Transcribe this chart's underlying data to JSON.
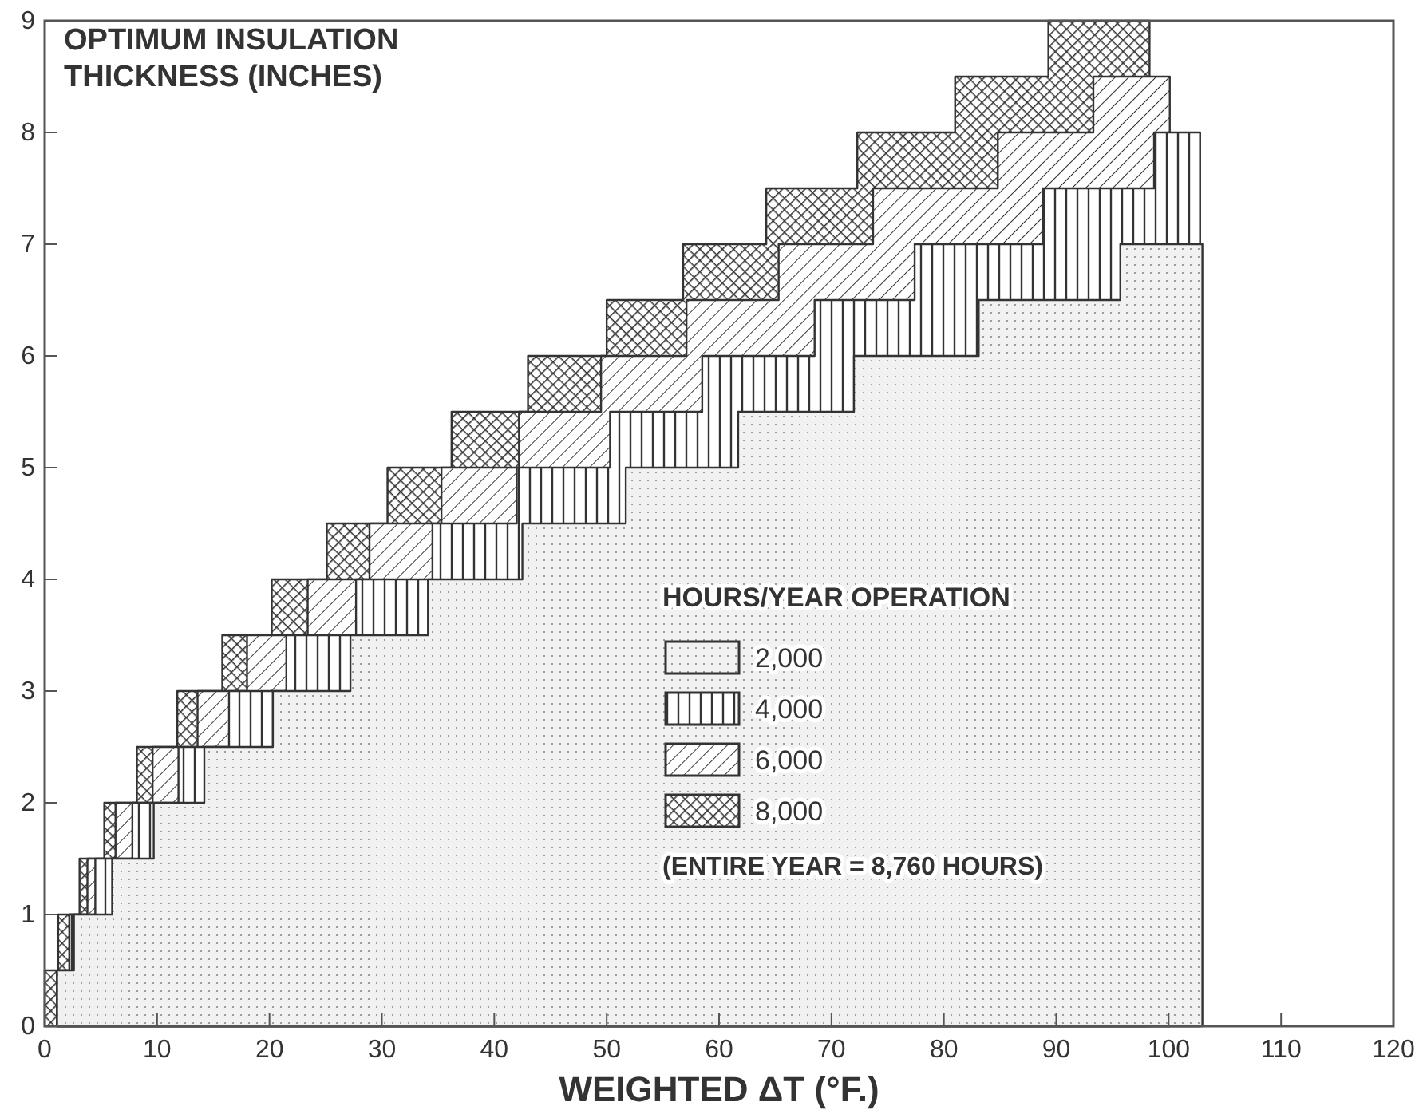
{
  "chart_data": {
    "type": "area",
    "ylabel": "OPTIMUM INSULATION\nTHICKNESS (INCHES)",
    "xlabel": "WEIGHTED ΔT (°F.)",
    "legend_title": "HOURS/YEAR OPERATION",
    "legend": "right",
    "annotations": [
      "(ENTIRE YEAR = 8,760 HOURS)"
    ],
    "xlim": [
      0,
      120
    ],
    "xticks": [
      0,
      10,
      20,
      30,
      40,
      50,
      60,
      70,
      80,
      90,
      100,
      110,
      120
    ],
    "ylim": [
      0,
      9
    ],
    "yticks": [
      0,
      1,
      2,
      3,
      4,
      5,
      6,
      7,
      8,
      9
    ],
    "grid": false,
    "series": [
      {
        "name": "2,000",
        "color": "#333333",
        "x": [
          1.1,
          2.6,
          2.6,
          6.0,
          6.0,
          9.7,
          9.7,
          14.2,
          14.2,
          20.3,
          20.3,
          27.2,
          27.2,
          34.1,
          34.1,
          42.5,
          42.5,
          51.7,
          51.7,
          61.7,
          61.7,
          72.0,
          72.0,
          83.1,
          83.1,
          95.7,
          95.7,
          103
        ],
        "values": [
          0.5,
          0.5,
          1.0,
          1.0,
          1.5,
          1.5,
          2.0,
          2.0,
          2.5,
          2.5,
          3.0,
          3.0,
          3.5,
          3.5,
          4.0,
          4.0,
          4.5,
          4.5,
          5.0,
          5.0,
          5.5,
          5.5,
          6.0,
          6.0,
          6.5,
          6.5,
          7.0,
          7.0
        ]
      },
      {
        "name": "4,000",
        "color": "#333333",
        "x": [
          1.1,
          2.2,
          2.2,
          4.5,
          4.5,
          7.8,
          7.8,
          11.9,
          11.9,
          16.4,
          16.4,
          21.5,
          21.5,
          27.7,
          27.7,
          34.5,
          34.5,
          42.0,
          42.0,
          50.3,
          50.3,
          58.5,
          58.5,
          68.5,
          68.5,
          77.4,
          77.4,
          88.8,
          88.8,
          98.7,
          98.7,
          102.8
        ],
        "values": [
          0.5,
          0.5,
          1.0,
          1.0,
          1.5,
          1.5,
          2.0,
          2.0,
          2.5,
          2.5,
          3.0,
          3.0,
          3.5,
          3.5,
          4.0,
          4.0,
          4.5,
          4.5,
          5.0,
          5.0,
          5.5,
          5.5,
          6.0,
          6.0,
          6.5,
          6.5,
          7.0,
          7.0,
          7.5,
          7.5,
          8.0,
          8.0
        ]
      },
      {
        "name": "6,000",
        "color": "#333333",
        "x": [
          1.1,
          2.2,
          2.2,
          3.8,
          3.8,
          6.3,
          6.3,
          9.6,
          9.6,
          13.6,
          13.6,
          18.0,
          18.0,
          23.4,
          23.4,
          28.9,
          28.9,
          35.3,
          35.3,
          42.2,
          42.2,
          49.5,
          49.5,
          57.1,
          57.1,
          65.3,
          65.3,
          73.7,
          73.7,
          84.8,
          84.8,
          93.3,
          93.3,
          100.1
        ],
        "values": [
          0.5,
          0.5,
          1.0,
          1.0,
          1.5,
          1.5,
          2.0,
          2.0,
          2.5,
          2.5,
          3.0,
          3.0,
          3.5,
          3.5,
          4.0,
          4.0,
          4.5,
          4.5,
          5.0,
          5.0,
          5.5,
          5.5,
          6.0,
          6.0,
          6.5,
          6.5,
          7.0,
          7.0,
          7.5,
          7.5,
          8.0,
          8.0,
          8.5,
          8.5
        ]
      },
      {
        "name": "8,000",
        "color": "#333333",
        "x": [
          0,
          1.2,
          1.2,
          3.1,
          3.1,
          5.3,
          5.3,
          8.2,
          8.2,
          11.8,
          11.8,
          15.8,
          15.8,
          20.2,
          20.2,
          25.1,
          25.1,
          30.5,
          30.5,
          36.2,
          36.2,
          43.0,
          43.0,
          50.0,
          50.0,
          56.8,
          56.8,
          64.2,
          64.2,
          72.3,
          72.3,
          81.0,
          81.0,
          89.3,
          89.3,
          98.3
        ],
        "values": [
          0.5,
          0.5,
          1.0,
          1.0,
          1.5,
          1.5,
          2.0,
          2.0,
          2.5,
          2.5,
          3.0,
          3.0,
          3.5,
          3.5,
          4.0,
          4.0,
          4.5,
          4.5,
          5.0,
          5.0,
          5.5,
          5.5,
          6.0,
          6.0,
          6.5,
          6.5,
          7.0,
          7.0,
          7.5,
          7.5,
          8.0,
          8.0,
          8.5,
          8.5,
          9.0,
          9.0
        ]
      }
    ]
  }
}
